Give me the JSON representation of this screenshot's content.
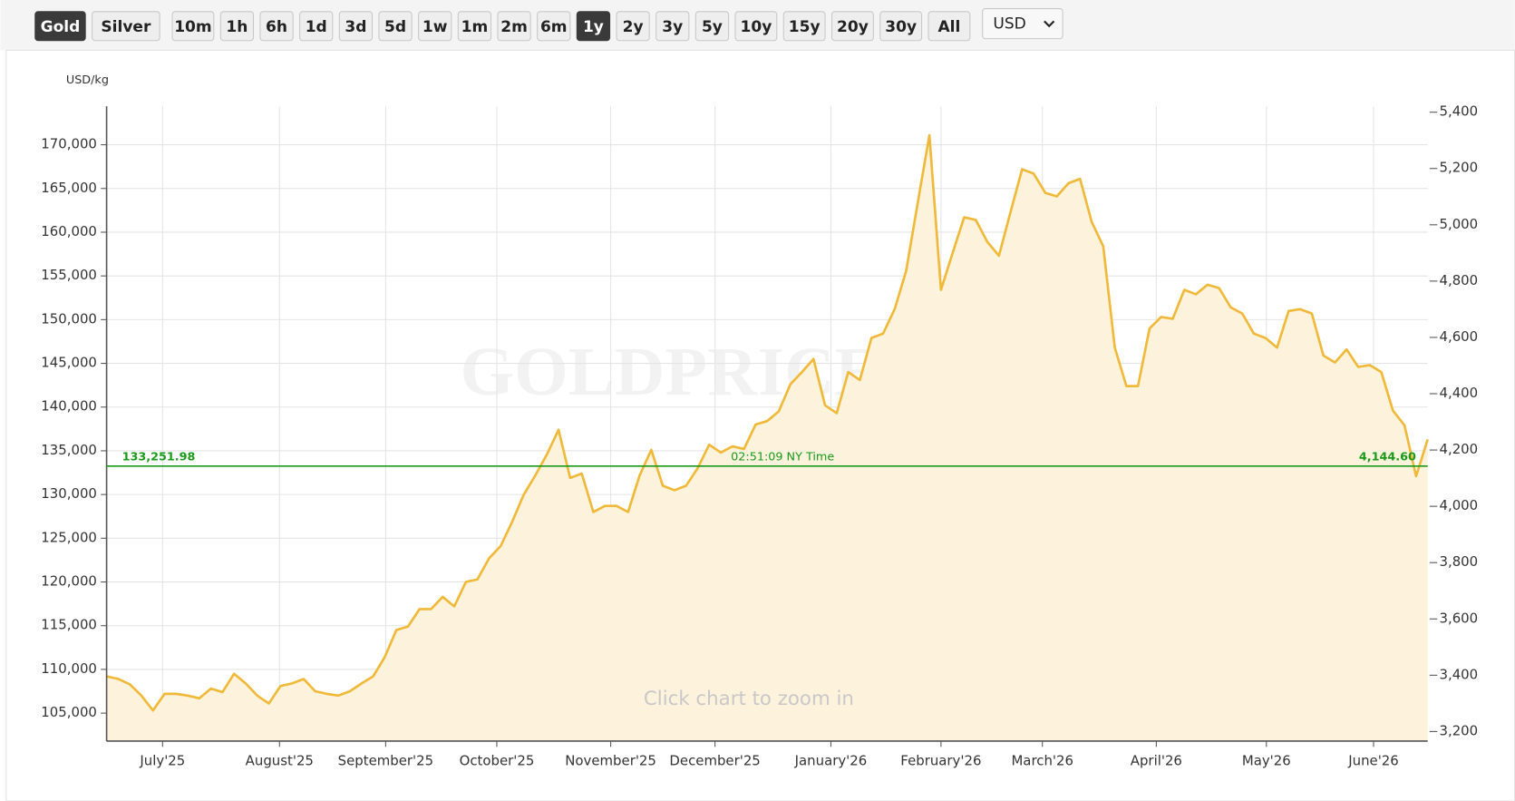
{
  "toolbar": {
    "metals": [
      "Gold",
      "Silver"
    ],
    "active_metal": "Gold",
    "ranges": [
      "10m",
      "1h",
      "6h",
      "1d",
      "3d",
      "5d",
      "1w",
      "1m",
      "2m",
      "6m",
      "1y",
      "2y",
      "3y",
      "5y",
      "10y",
      "15y",
      "20y",
      "30y",
      "All"
    ],
    "active_range": "1y",
    "currency": "USD"
  },
  "chart_data": {
    "type": "area",
    "y_label": "USD/kg",
    "watermark": "GOLDPRICE.ORG",
    "annotation": "Click chart to zoom in",
    "xlim": [
      0,
      114
    ],
    "xticks": [
      {
        "value": 4.83,
        "label": "July'25"
      },
      {
        "value": 14.92,
        "label": "August'25"
      },
      {
        "value": 24.08,
        "label": "September'25"
      },
      {
        "value": 33.67,
        "label": "October'25"
      },
      {
        "value": 43.5,
        "label": "November'25"
      },
      {
        "value": 52.5,
        "label": "December'25"
      },
      {
        "value": 62.5,
        "label": "January'26"
      },
      {
        "value": 72,
        "label": "February'26"
      },
      {
        "value": 80.75,
        "label": "March'26"
      },
      {
        "value": 90.58,
        "label": "April'26"
      },
      {
        "value": 100.08,
        "label": "May'26"
      },
      {
        "value": 109.33,
        "label": "June'26"
      }
    ],
    "ylim": [
      101800,
      174400
    ],
    "yticks": [
      {
        "value": 105000,
        "label": "105,000"
      },
      {
        "value": 110000,
        "label": "110,000"
      },
      {
        "value": 115000,
        "label": "115,000"
      },
      {
        "value": 120000,
        "label": "120,000"
      },
      {
        "value": 125000,
        "label": "125,000"
      },
      {
        "value": 130000,
        "label": "130,000"
      },
      {
        "value": 135000,
        "label": "135,000"
      },
      {
        "value": 140000,
        "label": "140,000"
      },
      {
        "value": 145000,
        "label": "145,000"
      },
      {
        "value": 150000,
        "label": "150,000"
      },
      {
        "value": 155000,
        "label": "155,000"
      },
      {
        "value": 160000,
        "label": "160,000"
      },
      {
        "value": 165000,
        "label": "165,000"
      },
      {
        "value": 170000,
        "label": "170,000"
      }
    ],
    "y2lim": [
      3166,
      5421
    ],
    "y2ticks": [
      {
        "value": 3200,
        "label": "3,200"
      },
      {
        "value": 3400,
        "label": "3,400"
      },
      {
        "value": 3600,
        "label": "3,600"
      },
      {
        "value": 3800,
        "label": "3,800"
      },
      {
        "value": 4000,
        "label": "4,000"
      },
      {
        "value": 4200,
        "label": "4,200"
      },
      {
        "value": 4400,
        "label": "4,400"
      },
      {
        "value": 4600,
        "label": "4,600"
      },
      {
        "value": 4800,
        "label": "4,800"
      },
      {
        "value": 5000,
        "label": "5,000"
      },
      {
        "value": 5200,
        "label": "5,200"
      },
      {
        "value": 5400,
        "label": "5,400"
      }
    ],
    "grid": true,
    "reference_line": {
      "value": 133251.98,
      "label": "133,251.98",
      "value_y2": 4144.6,
      "label_y2": "4,144.60",
      "time": "02:51:09 NY Time",
      "color": "#1a9a1a"
    },
    "series": [
      {
        "name": "Gold",
        "color": "#f0b93a",
        "fill": "#fdf2dc",
        "values": [
          109200,
          108900,
          108300,
          107000,
          105300,
          107200,
          107200,
          107000,
          106700,
          107800,
          107400,
          109500,
          108400,
          107000,
          106100,
          108100,
          108400,
          108900,
          107500,
          107200,
          107000,
          107500,
          108400,
          109200,
          111400,
          114500,
          114900,
          116900,
          116900,
          118300,
          117200,
          120000,
          120300,
          122700,
          124100,
          126900,
          130000,
          132200,
          134600,
          137400,
          131900,
          132400,
          128000,
          128700,
          128700,
          128000,
          132200,
          135100,
          131000,
          130500,
          131000,
          133000,
          135700,
          134800,
          135500,
          135200,
          138000,
          138400,
          139500,
          142600,
          144000,
          145500,
          140200,
          139300,
          144000,
          143100,
          147900,
          148400,
          151200,
          155600,
          163400,
          171100,
          153400,
          157600,
          161700,
          161400,
          158900,
          157300,
          162300,
          167200,
          166700,
          164500,
          164100,
          165600,
          166100,
          161200,
          158400,
          146800,
          142400,
          142400,
          149000,
          150300,
          150100,
          153400,
          152900,
          154000,
          153600,
          151400,
          150700,
          148400,
          147900,
          146800,
          151000,
          151200,
          150700,
          145900,
          145100,
          146600,
          144600,
          144800,
          144000,
          139600,
          137900,
          132100,
          136300
        ]
      }
    ]
  }
}
